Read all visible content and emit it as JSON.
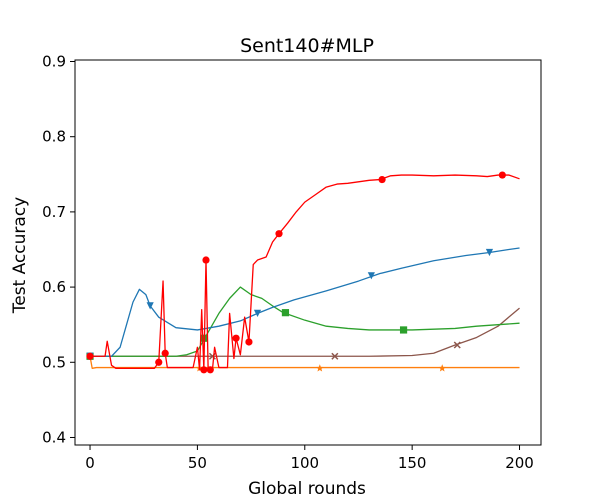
{
  "chart_data": {
    "type": "line",
    "title": "Sent140#MLP",
    "xlabel": "Global rounds",
    "ylabel": "Test Accuracy",
    "xlim": [
      -7,
      210
    ],
    "ylim": [
      0.39,
      0.902
    ],
    "xticks": [
      0,
      50,
      100,
      150,
      200
    ],
    "yticks": [
      0.4,
      0.5,
      0.6,
      0.7,
      0.8,
      0.9
    ],
    "xtick_labels": [
      "0",
      "50",
      "100",
      "150",
      "200"
    ],
    "ytick_labels": [
      "0.4",
      "0.5",
      "0.6",
      "0.7",
      "0.8",
      "0.9"
    ],
    "grid": false,
    "legend": "none",
    "series": [
      {
        "color": "#ff7f0e",
        "marker": "star",
        "points": [
          [
            0,
            0.508
          ],
          [
            1,
            0.492
          ],
          [
            3,
            0.493
          ],
          [
            50,
            0.493
          ],
          [
            100,
            0.493
          ],
          [
            150,
            0.493
          ],
          [
            200,
            0.493
          ]
        ],
        "markers": [
          [
            0,
            0.508
          ],
          [
            51,
            0.492
          ],
          [
            107,
            0.492
          ],
          [
            164,
            0.492
          ]
        ]
      },
      {
        "color": "#8c564b",
        "marker": "x",
        "points": [
          [
            0,
            0.508
          ],
          [
            50,
            0.508
          ],
          [
            100,
            0.508
          ],
          [
            130,
            0.508
          ],
          [
            150,
            0.509
          ],
          [
            160,
            0.512
          ],
          [
            170,
            0.523
          ],
          [
            180,
            0.533
          ],
          [
            190,
            0.548
          ],
          [
            195,
            0.56
          ],
          [
            200,
            0.572
          ]
        ],
        "markers": [
          [
            0,
            0.508
          ],
          [
            57,
            0.508
          ],
          [
            114,
            0.508
          ],
          [
            171,
            0.523
          ]
        ]
      },
      {
        "color": "#2ca02c",
        "marker": "square",
        "points": [
          [
            0,
            0.508
          ],
          [
            40,
            0.508
          ],
          [
            45,
            0.51
          ],
          [
            50,
            0.515
          ],
          [
            55,
            0.54
          ],
          [
            60,
            0.565
          ],
          [
            65,
            0.585
          ],
          [
            70,
            0.6
          ],
          [
            75,
            0.59
          ],
          [
            80,
            0.585
          ],
          [
            85,
            0.575
          ],
          [
            90,
            0.566
          ],
          [
            100,
            0.556
          ],
          [
            110,
            0.548
          ],
          [
            120,
            0.545
          ],
          [
            130,
            0.543
          ],
          [
            140,
            0.543
          ],
          [
            150,
            0.543
          ],
          [
            160,
            0.544
          ],
          [
            170,
            0.545
          ],
          [
            180,
            0.548
          ],
          [
            190,
            0.55
          ],
          [
            200,
            0.552
          ]
        ],
        "markers": [
          [
            0,
            0.508
          ],
          [
            53,
            0.532
          ],
          [
            91,
            0.566
          ],
          [
            146,
            0.543
          ]
        ]
      },
      {
        "color": "#1f77b4",
        "marker": "triangle-down",
        "points": [
          [
            0,
            0.508
          ],
          [
            10,
            0.508
          ],
          [
            14,
            0.52
          ],
          [
            17,
            0.55
          ],
          [
            20,
            0.58
          ],
          [
            23,
            0.597
          ],
          [
            26,
            0.59
          ],
          [
            28,
            0.575
          ],
          [
            32,
            0.56
          ],
          [
            40,
            0.546
          ],
          [
            50,
            0.543
          ],
          [
            60,
            0.548
          ],
          [
            70,
            0.555
          ],
          [
            78,
            0.565
          ],
          [
            85,
            0.573
          ],
          [
            95,
            0.583
          ],
          [
            110,
            0.595
          ],
          [
            125,
            0.608
          ],
          [
            135,
            0.618
          ],
          [
            145,
            0.625
          ],
          [
            160,
            0.635
          ],
          [
            175,
            0.642
          ],
          [
            186,
            0.646
          ],
          [
            195,
            0.65
          ],
          [
            200,
            0.652
          ]
        ],
        "markers": [
          [
            0,
            0.508
          ],
          [
            28,
            0.575
          ],
          [
            78,
            0.565
          ],
          [
            131,
            0.615
          ],
          [
            186,
            0.646
          ]
        ]
      },
      {
        "color": "#ff0000",
        "marker": "circle",
        "points": [
          [
            0,
            0.508
          ],
          [
            7,
            0.508
          ],
          [
            8,
            0.528
          ],
          [
            10,
            0.496
          ],
          [
            12,
            0.492
          ],
          [
            30,
            0.492
          ],
          [
            32,
            0.5
          ],
          [
            34,
            0.608
          ],
          [
            35,
            0.512
          ],
          [
            36,
            0.493
          ],
          [
            48,
            0.493
          ],
          [
            50,
            0.52
          ],
          [
            51,
            0.49
          ],
          [
            52,
            0.57
          ],
          [
            53,
            0.49
          ],
          [
            54,
            0.636
          ],
          [
            55,
            0.49
          ],
          [
            57,
            0.49
          ],
          [
            58,
            0.52
          ],
          [
            60,
            0.493
          ],
          [
            64,
            0.493
          ],
          [
            65,
            0.565
          ],
          [
            67,
            0.505
          ],
          [
            68,
            0.532
          ],
          [
            70,
            0.51
          ],
          [
            72,
            0.56
          ],
          [
            74,
            0.527
          ],
          [
            76,
            0.63
          ],
          [
            78,
            0.636
          ],
          [
            82,
            0.64
          ],
          [
            85,
            0.66
          ],
          [
            88,
            0.671
          ],
          [
            92,
            0.685
          ],
          [
            96,
            0.7
          ],
          [
            100,
            0.713
          ],
          [
            105,
            0.723
          ],
          [
            110,
            0.733
          ],
          [
            115,
            0.737
          ],
          [
            120,
            0.738
          ],
          [
            125,
            0.74
          ],
          [
            130,
            0.742
          ],
          [
            135,
            0.743
          ],
          [
            140,
            0.748
          ],
          [
            145,
            0.749
          ],
          [
            150,
            0.749
          ],
          [
            160,
            0.748
          ],
          [
            170,
            0.749
          ],
          [
            180,
            0.748
          ],
          [
            185,
            0.747
          ],
          [
            190,
            0.749
          ],
          [
            195,
            0.749
          ],
          [
            200,
            0.744
          ]
        ],
        "markers": [
          [
            0,
            0.508
          ],
          [
            32,
            0.5
          ],
          [
            35,
            0.512
          ],
          [
            53,
            0.49
          ],
          [
            54,
            0.636
          ],
          [
            56,
            0.49
          ],
          [
            68,
            0.532
          ],
          [
            74,
            0.527
          ],
          [
            88,
            0.671
          ],
          [
            136,
            0.743
          ],
          [
            192,
            0.749
          ]
        ]
      }
    ]
  }
}
